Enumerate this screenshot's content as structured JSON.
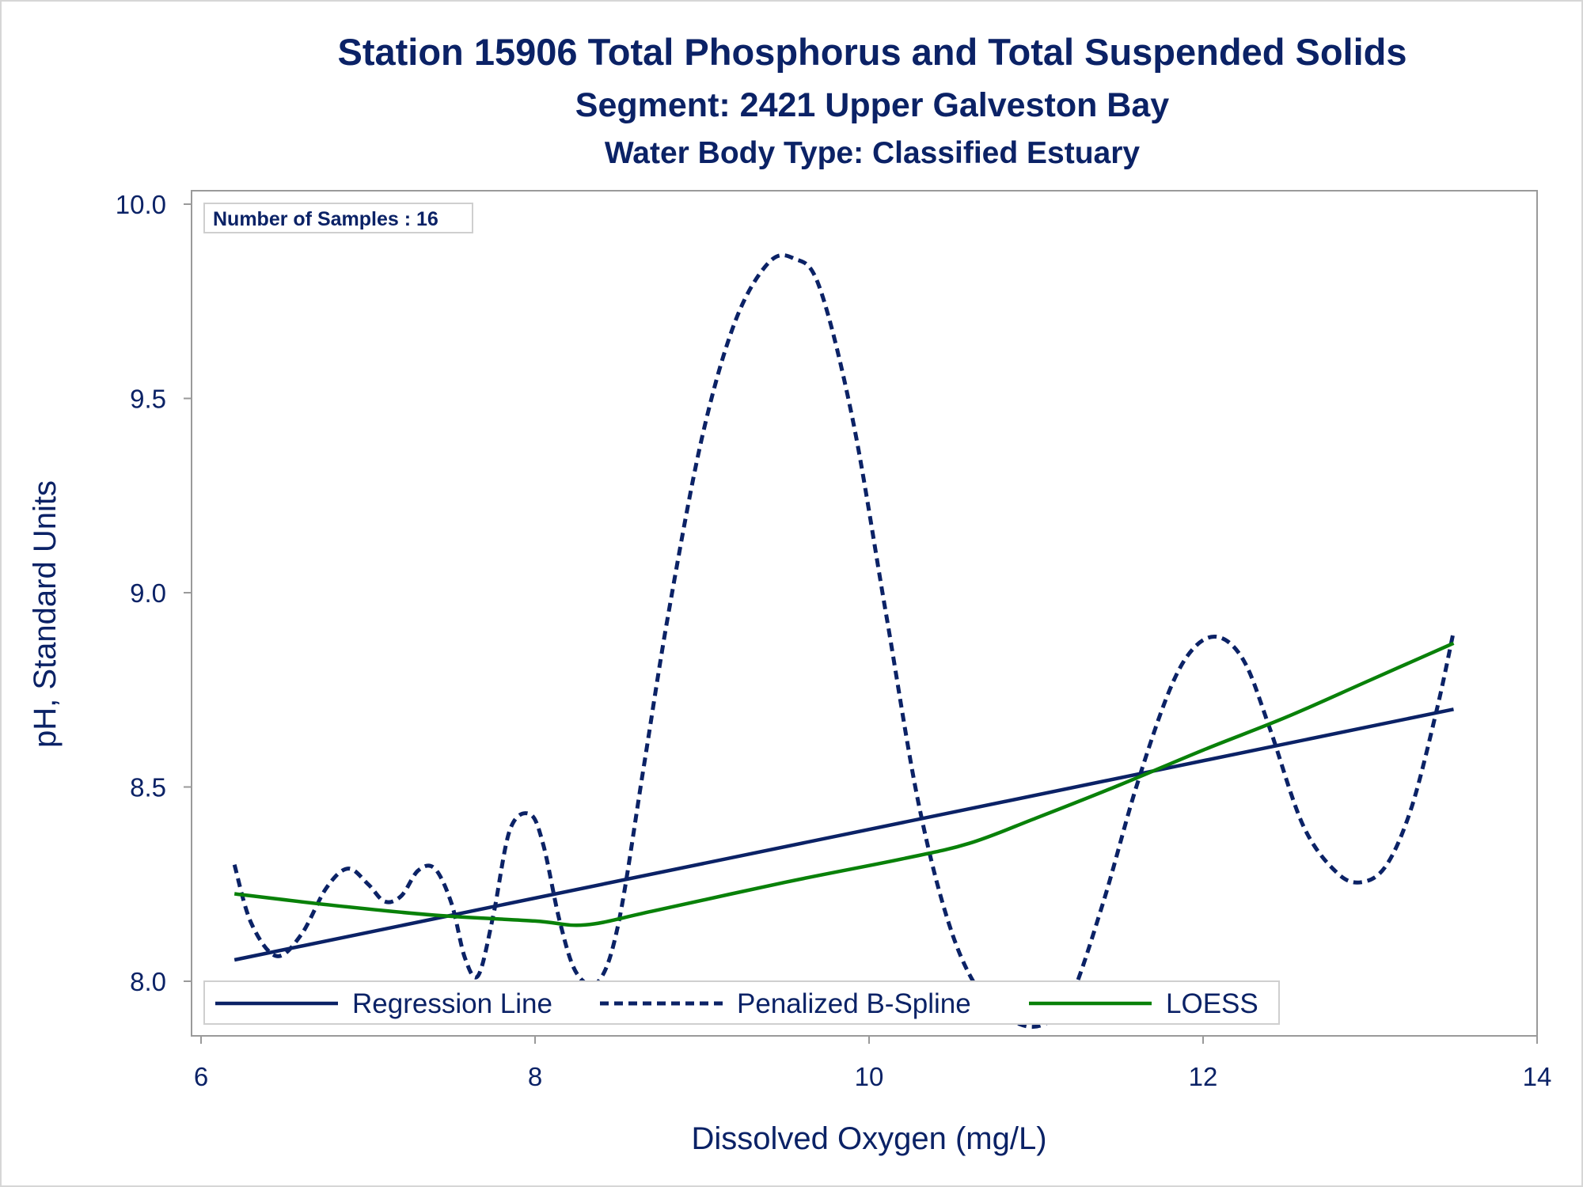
{
  "chart_data": {
    "type": "line",
    "title": "Station 15906  Total Phosphorus and Total Suspended Solids",
    "subtitle": "Segment: 2421  Upper Galveston Bay",
    "subtitle2": "Water Body Type: Classified Estuary",
    "xlabel": "Dissolved Oxygen (mg/L)",
    "ylabel": "pH, Standard Units",
    "xlim": [
      6,
      14
    ],
    "ylim": [
      7.86,
      10.04
    ],
    "x_ticks": [
      6,
      8,
      10,
      12,
      14
    ],
    "x_tick_labels": [
      "6",
      "8",
      "10",
      "12",
      "14"
    ],
    "y_ticks": [
      8.0,
      8.5,
      9.0,
      9.5,
      10.0
    ],
    "y_tick_labels": [
      "8.0",
      "8.5",
      "9.0",
      "9.5",
      "10.0"
    ],
    "grid": false,
    "legend_position": "bottom-inside",
    "inset_label": "Number of Samples : 16",
    "series": [
      {
        "name": "Regression Line",
        "style": "solid",
        "color": "#0b2266",
        "x": [
          6.2,
          13.5
        ],
        "y": [
          8.055,
          8.7
        ]
      },
      {
        "name": "Penalized B-Spline",
        "style": "dashed",
        "color": "#0b2266",
        "x": [
          6.2,
          6.3,
          6.45,
          6.6,
          6.75,
          6.88,
          7.0,
          7.1,
          7.2,
          7.3,
          7.4,
          7.5,
          7.58,
          7.66,
          7.75,
          7.85,
          7.97,
          8.05,
          8.15,
          8.25,
          8.38,
          8.5,
          8.65,
          8.8,
          9.0,
          9.2,
          9.4,
          9.55,
          9.7,
          9.9,
          10.1,
          10.3,
          10.5,
          10.7,
          10.9,
          11.05,
          11.2,
          11.4,
          11.6,
          11.8,
          11.95,
          12.1,
          12.25,
          12.4,
          12.6,
          12.8,
          12.95,
          13.1,
          13.25,
          13.4,
          13.5
        ],
        "y": [
          8.3,
          8.15,
          8.065,
          8.12,
          8.24,
          8.29,
          8.25,
          8.205,
          8.22,
          8.285,
          8.29,
          8.2,
          8.06,
          8.015,
          8.17,
          8.39,
          8.43,
          8.35,
          8.15,
          8.02,
          8.0,
          8.15,
          8.55,
          8.95,
          9.4,
          9.7,
          9.85,
          9.86,
          9.79,
          9.45,
          8.95,
          8.45,
          8.12,
          7.95,
          7.89,
          7.89,
          7.95,
          8.2,
          8.5,
          8.75,
          8.86,
          8.885,
          8.82,
          8.65,
          8.4,
          8.28,
          8.255,
          8.3,
          8.45,
          8.7,
          8.9
        ]
      },
      {
        "name": "LOESS",
        "style": "solid",
        "color": "#098109",
        "x": [
          6.2,
          6.8,
          7.4,
          8.0,
          8.3,
          8.7,
          9.5,
          10.2,
          10.6,
          11.0,
          11.5,
          12.0,
          12.5,
          13.0,
          13.5
        ],
        "y": [
          8.225,
          8.195,
          8.17,
          8.155,
          8.145,
          8.18,
          8.255,
          8.315,
          8.355,
          8.42,
          8.505,
          8.595,
          8.68,
          8.775,
          8.87
        ]
      }
    ]
  }
}
